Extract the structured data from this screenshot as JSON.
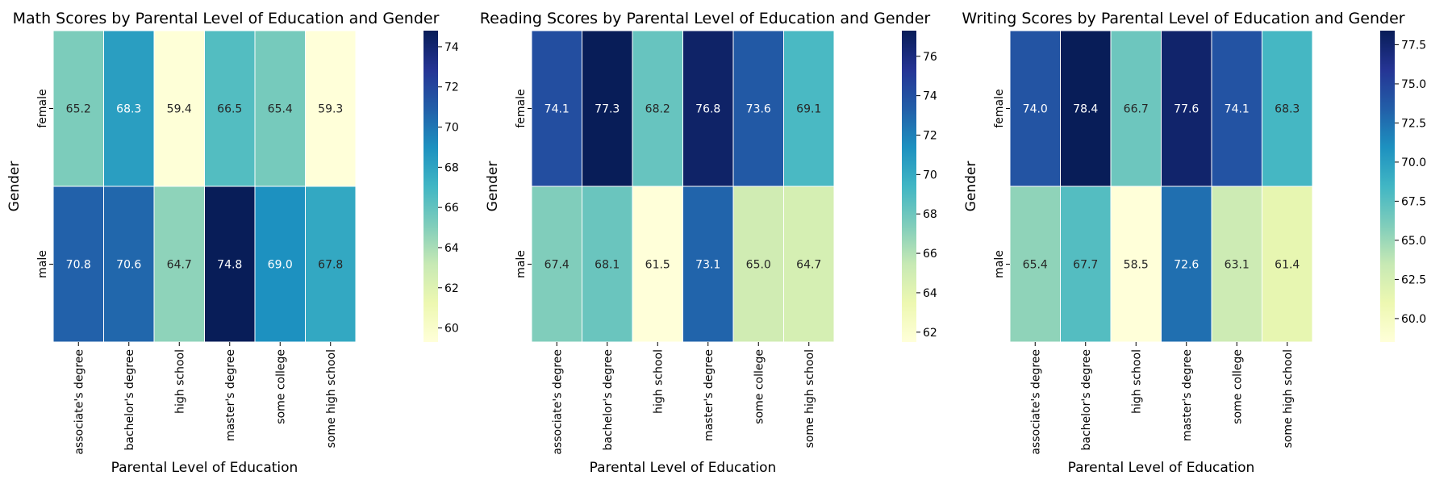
{
  "chart_data": [
    {
      "type": "heatmap",
      "title": "Math Scores by Parental Level of Education and Gender",
      "xlabel": "Parental Level of Education",
      "ylabel": "Gender",
      "x_categories": [
        "associate's degree",
        "bachelor's degree",
        "high school",
        "master's degree",
        "some college",
        "some high school"
      ],
      "y_categories": [
        "female",
        "male"
      ],
      "values": [
        [
          65.2,
          68.3,
          59.4,
          66.5,
          65.4,
          59.3
        ],
        [
          70.8,
          70.6,
          64.7,
          74.8,
          69.0,
          67.8
        ]
      ],
      "value_range": [
        59.3,
        74.8
      ],
      "colorbar_ticks": [
        "60",
        "62",
        "64",
        "66",
        "68",
        "70",
        "72",
        "74"
      ],
      "colormap": "YlGnBu"
    },
    {
      "type": "heatmap",
      "title": "Reading Scores by Parental Level of Education and Gender",
      "xlabel": "Parental Level of Education",
      "ylabel": "Gender",
      "x_categories": [
        "associate's degree",
        "bachelor's degree",
        "high school",
        "master's degree",
        "some college",
        "some high school"
      ],
      "y_categories": [
        "female",
        "male"
      ],
      "values": [
        [
          74.1,
          77.3,
          68.2,
          76.8,
          73.6,
          69.1
        ],
        [
          67.4,
          68.1,
          61.5,
          73.1,
          65.0,
          64.7
        ]
      ],
      "value_range": [
        61.5,
        77.3
      ],
      "colorbar_ticks": [
        "62",
        "64",
        "66",
        "68",
        "70",
        "72",
        "74",
        "76"
      ],
      "colormap": "YlGnBu"
    },
    {
      "type": "heatmap",
      "title": "Writing Scores by Parental Level of Education and Gender",
      "xlabel": "Parental Level of Education",
      "ylabel": "Gender",
      "x_categories": [
        "associate's degree",
        "bachelor's degree",
        "high school",
        "master's degree",
        "some college",
        "some high school"
      ],
      "y_categories": [
        "female",
        "male"
      ],
      "values": [
        [
          74.0,
          78.4,
          66.7,
          77.6,
          74.1,
          68.3
        ],
        [
          65.4,
          67.7,
          58.5,
          72.6,
          63.1,
          61.4
        ]
      ],
      "value_range": [
        58.5,
        78.4
      ],
      "colorbar_ticks": [
        "60.0",
        "62.5",
        "65.0",
        "67.5",
        "70.0",
        "72.5",
        "75.0",
        "77.5"
      ],
      "colormap": "YlGnBu"
    }
  ]
}
